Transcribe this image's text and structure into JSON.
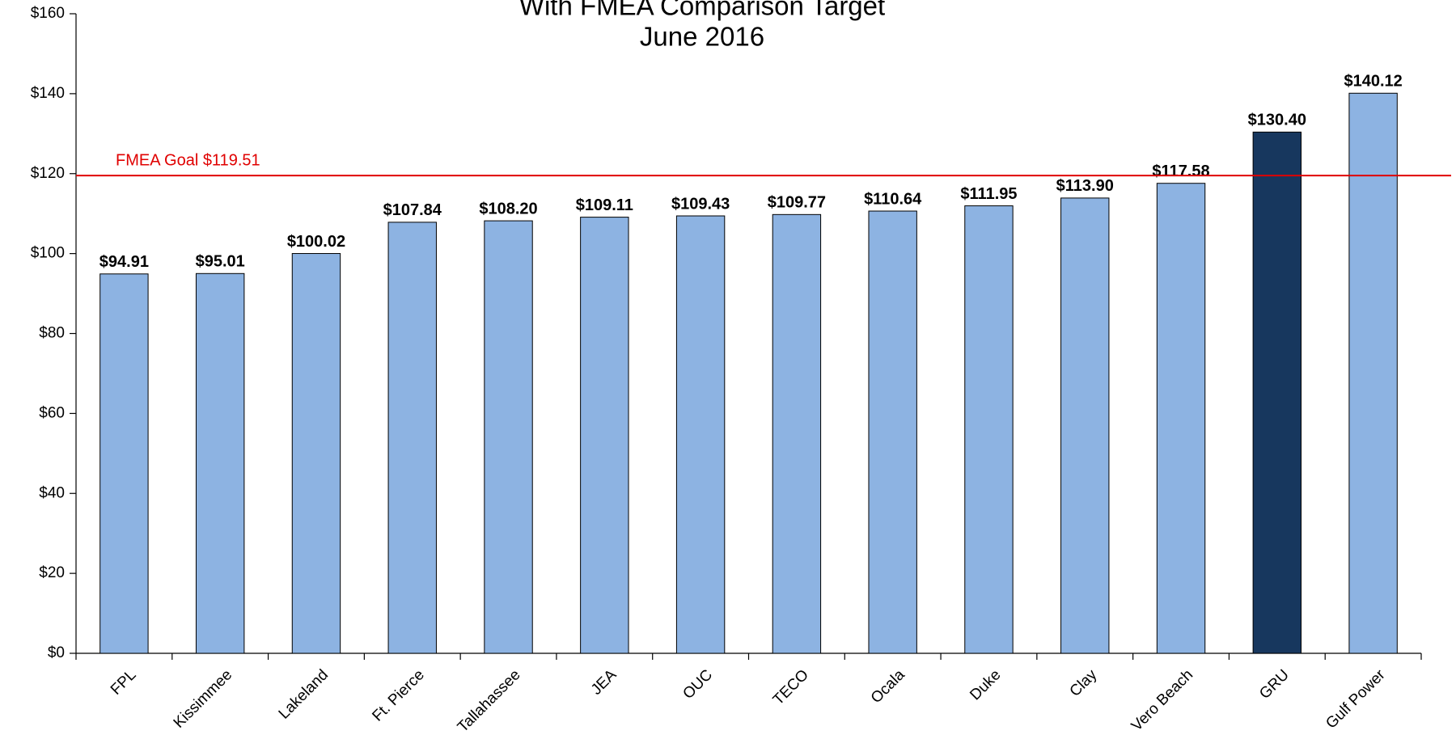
{
  "chart_data": {
    "type": "bar",
    "title_lines": [
      "With FMEA Comparison Target",
      "June 2016"
    ],
    "categories": [
      "FPL",
      "Kissimmee",
      "Lakeland",
      "Ft. Pierce",
      "Tallahassee",
      "JEA",
      "OUC",
      "TECO",
      "Ocala",
      "Duke",
      "Clay",
      "Vero Beach",
      "GRU",
      "Gulf Power"
    ],
    "values": [
      94.91,
      95.01,
      100.02,
      107.84,
      108.2,
      109.11,
      109.43,
      109.77,
      110.64,
      111.95,
      113.9,
      117.58,
      130.4,
      140.12
    ],
    "value_labels": [
      "$94.91",
      "$95.01",
      "$100.02",
      "$107.84",
      "$108.20",
      "$109.11",
      "$109.43",
      "$109.77",
      "$110.64",
      "$111.95",
      "$113.90",
      "$117.58",
      "$130.40",
      "$140.12"
    ],
    "colors": [
      "#8db3e2",
      "#8db3e2",
      "#8db3e2",
      "#8db3e2",
      "#8db3e2",
      "#8db3e2",
      "#8db3e2",
      "#8db3e2",
      "#8db3e2",
      "#8db3e2",
      "#8db3e2",
      "#8db3e2",
      "#17375e",
      "#8db3e2"
    ],
    "ylim": [
      0,
      160
    ],
    "yticks": [
      {
        "value": 0,
        "label": "$0"
      },
      {
        "value": 20,
        "label": "$20"
      },
      {
        "value": 40,
        "label": "$40"
      },
      {
        "value": 60,
        "label": "$60"
      },
      {
        "value": 80,
        "label": "$80"
      },
      {
        "value": 100,
        "label": "$100"
      },
      {
        "value": 120,
        "label": "$120"
      },
      {
        "value": 140,
        "label": "$140"
      },
      {
        "value": 160,
        "label": "$160"
      }
    ],
    "grid": false,
    "reference_line": {
      "value": 119.51,
      "label": "FMEA Goal $119.51",
      "color": "#e00000"
    }
  }
}
